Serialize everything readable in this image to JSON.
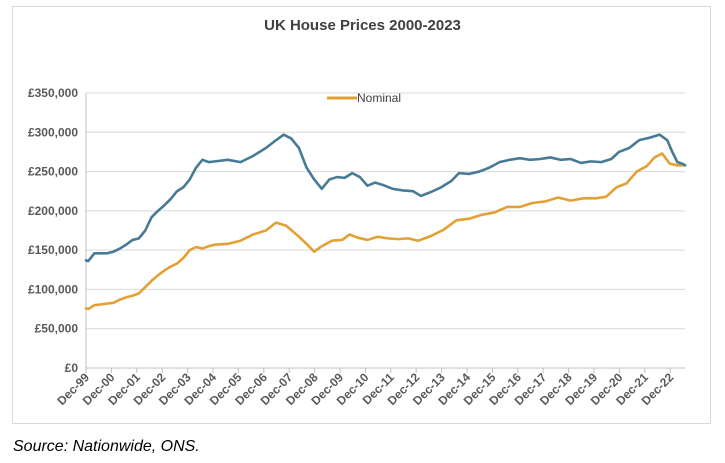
{
  "chart_data": {
    "type": "line",
    "title": "UK House Prices 2000-2023",
    "xlabel": "",
    "ylabel": "",
    "ylim": [
      0,
      350000
    ],
    "y_ticks": [
      "£0",
      "£50,000",
      "£100,000",
      "£150,000",
      "£200,000",
      "£250,000",
      "£300,000",
      "£350,000"
    ],
    "y_tick_values": [
      0,
      50000,
      100000,
      150000,
      200000,
      250000,
      300000,
      350000
    ],
    "x_ticks": [
      "Dec-99",
      "Dec-00",
      "Dec-01",
      "Dec-02",
      "Dec-03",
      "Dec-04",
      "Dec-05",
      "Dec-06",
      "Dec-07",
      "Dec-08",
      "Dec-09",
      "Dec-10",
      "Dec-11",
      "Dec-12",
      "Dec-13",
      "Dec-14",
      "Dec-15",
      "Dec-16",
      "Dec-17",
      "Dec-18",
      "Dec-19",
      "Dec-20",
      "Dec-21",
      "Dec-22"
    ],
    "x_range": [
      1999.917,
      2023.5
    ],
    "grid": "horizontal",
    "legend_position": "top-center",
    "series": [
      {
        "name": "Nominal",
        "color": "#E3A034",
        "points": [
          [
            1999.917,
            76000
          ],
          [
            2000.0,
            75000
          ],
          [
            2000.25,
            80000
          ],
          [
            2000.5,
            81000
          ],
          [
            2000.75,
            82000
          ],
          [
            2001.0,
            83000
          ],
          [
            2001.25,
            87000
          ],
          [
            2001.5,
            90000
          ],
          [
            2001.75,
            92000
          ],
          [
            2002.0,
            95000
          ],
          [
            2002.25,
            103000
          ],
          [
            2002.5,
            111000
          ],
          [
            2002.75,
            118000
          ],
          [
            2003.0,
            124000
          ],
          [
            2003.25,
            129000
          ],
          [
            2003.5,
            133000
          ],
          [
            2003.75,
            140000
          ],
          [
            2004.0,
            150000
          ],
          [
            2004.25,
            154000
          ],
          [
            2004.5,
            152000
          ],
          [
            2004.75,
            155000
          ],
          [
            2005.0,
            157000
          ],
          [
            2005.5,
            158000
          ],
          [
            2006.0,
            162000
          ],
          [
            2006.5,
            170000
          ],
          [
            2007.0,
            175000
          ],
          [
            2007.4,
            185000
          ],
          [
            2007.8,
            181000
          ],
          [
            2008.2,
            170000
          ],
          [
            2008.6,
            158000
          ],
          [
            2008.9,
            148000
          ],
          [
            2009.2,
            155000
          ],
          [
            2009.6,
            162000
          ],
          [
            2010.0,
            163000
          ],
          [
            2010.3,
            170000
          ],
          [
            2010.6,
            166000
          ],
          [
            2011.0,
            163000
          ],
          [
            2011.4,
            167000
          ],
          [
            2011.8,
            165000
          ],
          [
            2012.2,
            164000
          ],
          [
            2012.6,
            165000
          ],
          [
            2013.0,
            162000
          ],
          [
            2013.5,
            168000
          ],
          [
            2014.0,
            176000
          ],
          [
            2014.5,
            188000
          ],
          [
            2015.0,
            190000
          ],
          [
            2015.5,
            195000
          ],
          [
            2016.0,
            198000
          ],
          [
            2016.5,
            205000
          ],
          [
            2017.0,
            205000
          ],
          [
            2017.5,
            210000
          ],
          [
            2018.0,
            212000
          ],
          [
            2018.5,
            217000
          ],
          [
            2019.0,
            213000
          ],
          [
            2019.5,
            216000
          ],
          [
            2020.0,
            216000
          ],
          [
            2020.4,
            218000
          ],
          [
            2020.8,
            230000
          ],
          [
            2021.2,
            235000
          ],
          [
            2021.6,
            250000
          ],
          [
            2022.0,
            257000
          ],
          [
            2022.3,
            268000
          ],
          [
            2022.6,
            273000
          ],
          [
            2022.9,
            260000
          ],
          [
            2023.2,
            258000
          ],
          [
            2023.5,
            258000
          ]
        ]
      },
      {
        "name": "",
        "color": "#467A96",
        "points": [
          [
            1999.917,
            137000
          ],
          [
            2000.0,
            136000
          ],
          [
            2000.25,
            146000
          ],
          [
            2000.5,
            146000
          ],
          [
            2000.75,
            146000
          ],
          [
            2001.0,
            148000
          ],
          [
            2001.25,
            152000
          ],
          [
            2001.5,
            157000
          ],
          [
            2001.75,
            163000
          ],
          [
            2002.0,
            165000
          ],
          [
            2002.25,
            175000
          ],
          [
            2002.5,
            192000
          ],
          [
            2002.75,
            200000
          ],
          [
            2003.0,
            207000
          ],
          [
            2003.25,
            215000
          ],
          [
            2003.5,
            225000
          ],
          [
            2003.75,
            230000
          ],
          [
            2004.0,
            240000
          ],
          [
            2004.25,
            255000
          ],
          [
            2004.5,
            265000
          ],
          [
            2004.75,
            262000
          ],
          [
            2005.0,
            263000
          ],
          [
            2005.5,
            265000
          ],
          [
            2006.0,
            262000
          ],
          [
            2006.5,
            270000
          ],
          [
            2007.0,
            280000
          ],
          [
            2007.4,
            290000
          ],
          [
            2007.7,
            297000
          ],
          [
            2008.0,
            292000
          ],
          [
            2008.3,
            280000
          ],
          [
            2008.6,
            255000
          ],
          [
            2008.9,
            240000
          ],
          [
            2009.2,
            228000
          ],
          [
            2009.5,
            240000
          ],
          [
            2009.8,
            243000
          ],
          [
            2010.1,
            242000
          ],
          [
            2010.4,
            248000
          ],
          [
            2010.7,
            243000
          ],
          [
            2011.0,
            232000
          ],
          [
            2011.3,
            236000
          ],
          [
            2011.6,
            233000
          ],
          [
            2012.0,
            228000
          ],
          [
            2012.4,
            226000
          ],
          [
            2012.8,
            225000
          ],
          [
            2013.1,
            219000
          ],
          [
            2013.5,
            224000
          ],
          [
            2013.9,
            230000
          ],
          [
            2014.3,
            238000
          ],
          [
            2014.6,
            248000
          ],
          [
            2015.0,
            247000
          ],
          [
            2015.4,
            250000
          ],
          [
            2015.8,
            255000
          ],
          [
            2016.2,
            262000
          ],
          [
            2016.6,
            265000
          ],
          [
            2017.0,
            267000
          ],
          [
            2017.4,
            265000
          ],
          [
            2017.8,
            266000
          ],
          [
            2018.2,
            268000
          ],
          [
            2018.6,
            265000
          ],
          [
            2019.0,
            266000
          ],
          [
            2019.4,
            261000
          ],
          [
            2019.8,
            263000
          ],
          [
            2020.2,
            262000
          ],
          [
            2020.6,
            266000
          ],
          [
            2020.9,
            275000
          ],
          [
            2021.3,
            280000
          ],
          [
            2021.7,
            290000
          ],
          [
            2022.1,
            293000
          ],
          [
            2022.5,
            297000
          ],
          [
            2022.8,
            290000
          ],
          [
            2023.0,
            275000
          ],
          [
            2023.2,
            262000
          ],
          [
            2023.4,
            260000
          ],
          [
            2023.5,
            258000
          ]
        ]
      }
    ]
  },
  "source_note": "Source: Nationwide, ONS."
}
